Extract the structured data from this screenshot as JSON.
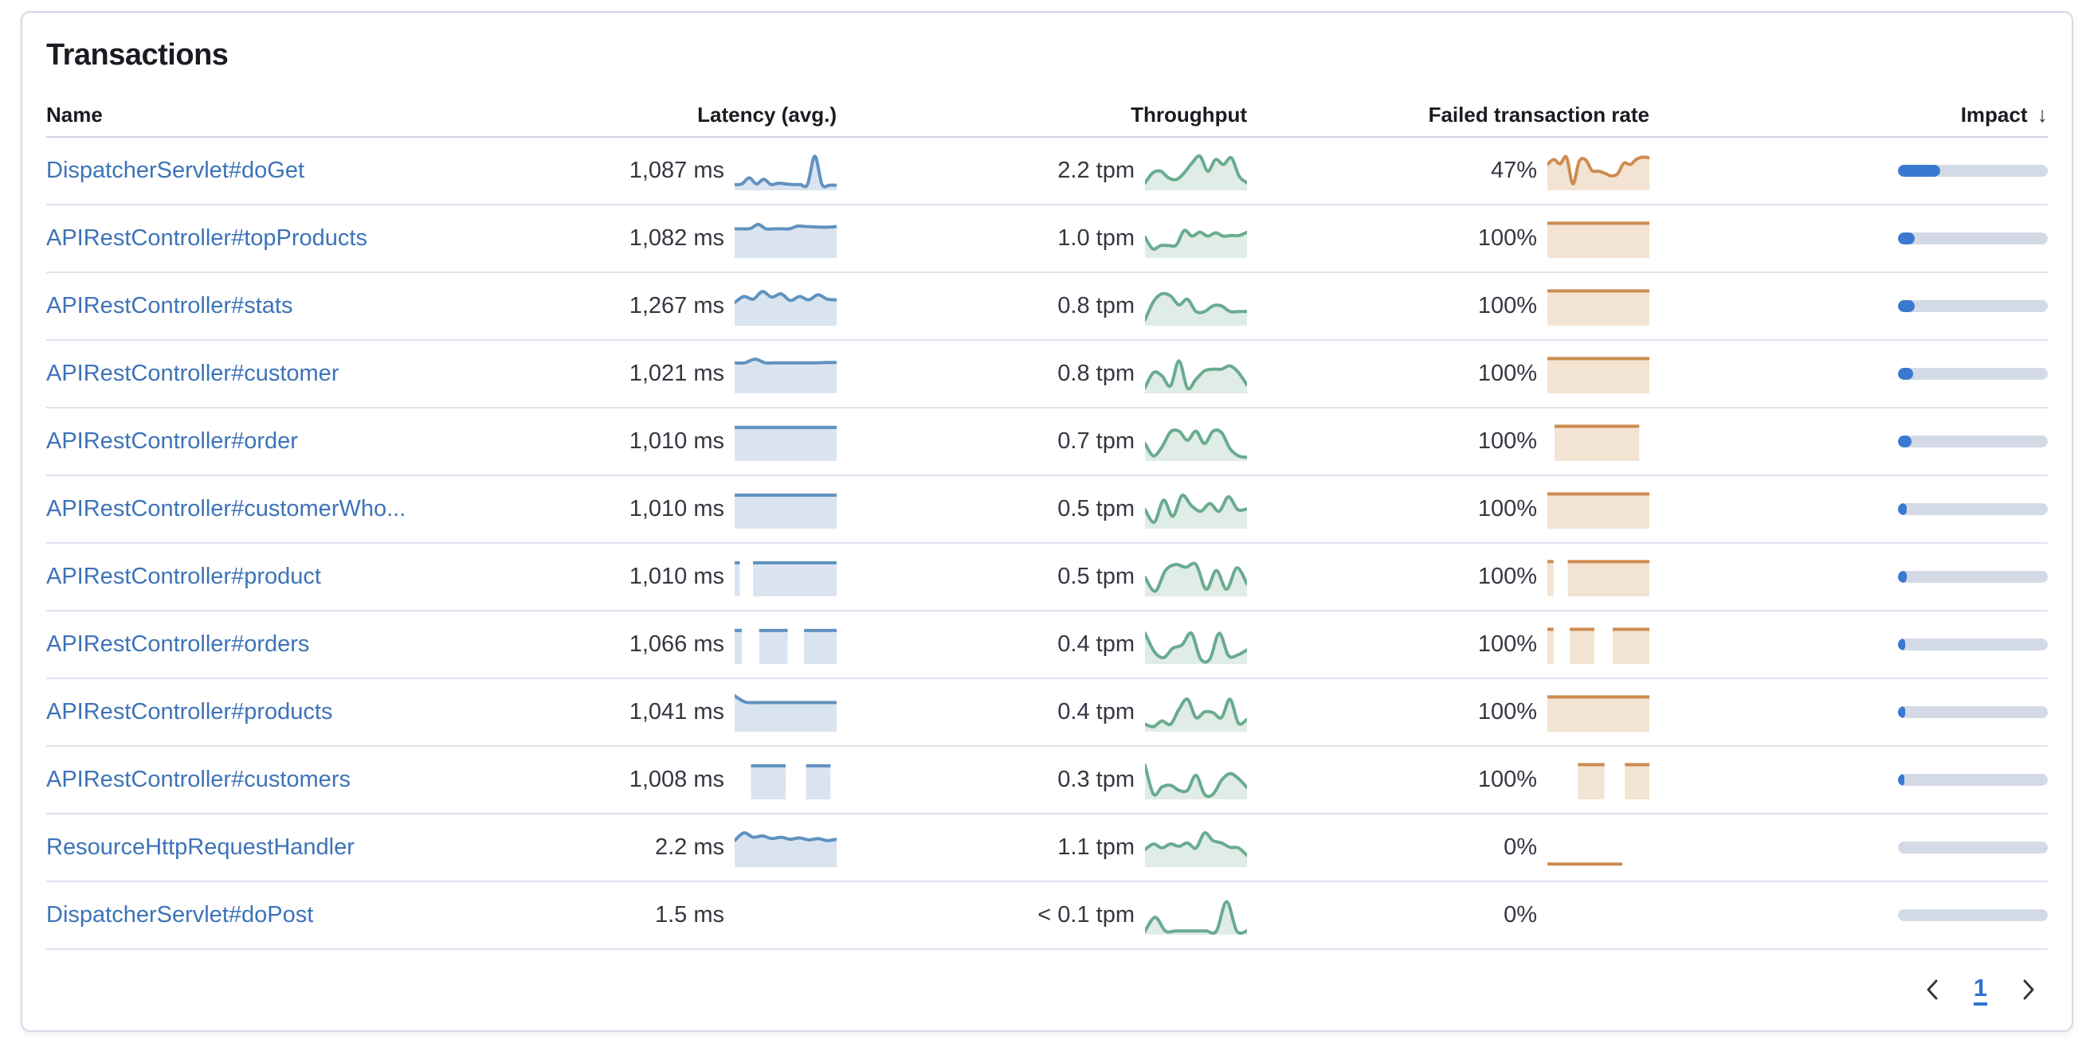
{
  "title": "Transactions",
  "table": {
    "headers": {
      "name": "Name",
      "latency": "Latency (avg.)",
      "throughput": "Throughput",
      "failed": "Failed transaction rate",
      "impact": "Impact",
      "sort_arrow": "↓"
    },
    "rows": [
      {
        "name": "DispatcherServlet#doGet",
        "latency": "1,087 ms",
        "throughput": "2.2 tpm",
        "failed": "47%",
        "impact_pct": 28,
        "latency_spark": {
          "type": "line",
          "points": [
            0.1,
            0.12,
            0.3,
            0.12,
            0.26,
            0.1,
            0.14,
            0.12,
            0.1,
            0.1,
            0.1,
            0.95,
            0.1,
            0.08,
            0.08
          ]
        },
        "throughput_spark": {
          "type": "line",
          "points": [
            0.15,
            0.45,
            0.5,
            0.3,
            0.25,
            0.45,
            0.75,
            0.95,
            0.5,
            0.85,
            0.7,
            0.9,
            0.35,
            0.15
          ]
        },
        "failed_spark": {
          "type": "line",
          "points": [
            0.7,
            0.85,
            0.72,
            0.92,
            0.12,
            0.8,
            0.84,
            0.52,
            0.5,
            0.44,
            0.36,
            0.42,
            0.74,
            0.7,
            0.86,
            0.92,
            0.9
          ]
        }
      },
      {
        "name": "APIRestController#topProducts",
        "latency": "1,082 ms",
        "throughput": "1.0 tpm",
        "failed": "100%",
        "impact_pct": 11,
        "latency_spark": {
          "type": "line",
          "points": [
            0.8,
            0.8,
            0.81,
            0.93,
            0.8,
            0.8,
            0.8,
            0.8,
            0.88,
            0.87,
            0.86,
            0.85,
            0.85,
            0.87
          ]
        },
        "throughput_spark": {
          "type": "line",
          "points": [
            0.55,
            0.2,
            0.3,
            0.3,
            0.32,
            0.75,
            0.58,
            0.7,
            0.58,
            0.68,
            0.58,
            0.6,
            0.6,
            0.7
          ]
        },
        "failed_spark": {
          "type": "blocks",
          "segments": [
            [
              0,
              1
            ]
          ],
          "top": 0.95
        }
      },
      {
        "name": "APIRestController#stats",
        "latency": "1,267 ms",
        "throughput": "0.8 tpm",
        "failed": "100%",
        "impact_pct": 11,
        "latency_spark": {
          "type": "line",
          "points": [
            0.62,
            0.8,
            0.72,
            0.95,
            0.78,
            0.88,
            0.68,
            0.8,
            0.7,
            0.85,
            0.72,
            0.7
          ]
        },
        "throughput_spark": {
          "type": "line",
          "points": [
            0.1,
            0.65,
            0.88,
            0.82,
            0.55,
            0.72,
            0.35,
            0.35,
            0.52,
            0.52,
            0.35,
            0.35,
            0.35
          ]
        },
        "failed_spark": {
          "type": "blocks",
          "segments": [
            [
              0,
              1
            ]
          ],
          "top": 0.95
        }
      },
      {
        "name": "APIRestController#customer",
        "latency": "1,021 ms",
        "throughput": "0.8 tpm",
        "failed": "100%",
        "impact_pct": 10,
        "latency_spark": {
          "type": "line",
          "points": [
            0.84,
            0.84,
            0.95,
            0.84,
            0.84,
            0.84,
            0.84,
            0.84,
            0.84,
            0.85,
            0.85
          ]
        },
        "throughput_spark": {
          "type": "line",
          "points": [
            0.1,
            0.55,
            0.45,
            0.15,
            0.9,
            0.08,
            0.35,
            0.6,
            0.65,
            0.65,
            0.75,
            0.55,
            0.18
          ]
        },
        "failed_spark": {
          "type": "blocks",
          "segments": [
            [
              0,
              1
            ]
          ],
          "top": 0.95
        }
      },
      {
        "name": "APIRestController#order",
        "latency": "1,010 ms",
        "throughput": "0.7 tpm",
        "failed": "100%",
        "impact_pct": 9,
        "latency_spark": {
          "type": "blocks",
          "segments": [
            [
              0,
              1
            ]
          ],
          "top": 0.92
        },
        "throughput_spark": {
          "type": "line",
          "points": [
            0.45,
            0.08,
            0.35,
            0.8,
            0.82,
            0.55,
            0.82,
            0.45,
            0.82,
            0.78,
            0.3,
            0.08,
            0.04
          ]
        },
        "failed_spark": {
          "type": "blocks",
          "segments": [
            [
              0.07,
              0.9
            ]
          ],
          "top": 0.95
        }
      },
      {
        "name": "APIRestController#customerWho...",
        "latency": "1,010 ms",
        "throughput": "0.5 tpm",
        "failed": "100%",
        "impact_pct": 6,
        "latency_spark": {
          "type": "blocks",
          "segments": [
            [
              0,
              1
            ]
          ],
          "top": 0.92
        },
        "throughput_spark": {
          "type": "line",
          "points": [
            0.5,
            0.12,
            0.78,
            0.3,
            0.92,
            0.62,
            0.45,
            0.68,
            0.45,
            0.88,
            0.5,
            0.52
          ]
        },
        "failed_spark": {
          "type": "blocks",
          "segments": [
            [
              0,
              1
            ]
          ],
          "top": 0.95
        }
      },
      {
        "name": "APIRestController#product",
        "latency": "1,010 ms",
        "throughput": "0.5 tpm",
        "failed": "100%",
        "impact_pct": 6,
        "latency_spark": {
          "type": "blocks",
          "segments": [
            [
              0,
              0.05
            ],
            [
              0.18,
              1
            ]
          ],
          "top": 0.92
        },
        "throughput_spark": {
          "type": "line",
          "points": [
            0.5,
            0.08,
            0.7,
            0.88,
            0.8,
            0.88,
            0.14,
            0.7,
            0.14,
            0.78,
            0.3
          ]
        },
        "failed_spark": {
          "type": "blocks",
          "segments": [
            [
              0,
              0.06
            ],
            [
              0.2,
              1
            ]
          ],
          "top": 0.95
        }
      },
      {
        "name": "APIRestController#orders",
        "latency": "1,066 ms",
        "throughput": "0.4 tpm",
        "failed": "100%",
        "impact_pct": 5,
        "latency_spark": {
          "type": "blocks",
          "segments": [
            [
              0,
              0.07
            ],
            [
              0.24,
              0.52
            ],
            [
              0.68,
              1
            ]
          ],
          "top": 0.92
        },
        "throughput_spark": {
          "type": "line",
          "points": [
            0.85,
            0.3,
            0.12,
            0.4,
            0.5,
            0.85,
            0.08,
            0.08,
            0.85,
            0.18,
            0.2,
            0.35
          ]
        },
        "failed_spark": {
          "type": "blocks",
          "segments": [
            [
              0,
              0.06
            ],
            [
              0.22,
              0.46
            ],
            [
              0.64,
              1
            ]
          ],
          "top": 0.95
        }
      },
      {
        "name": "APIRestController#products",
        "latency": "1,041 ms",
        "throughput": "0.4 tpm",
        "failed": "100%",
        "impact_pct": 5,
        "latency_spark": {
          "type": "line",
          "points": [
            1.0,
            0.82,
            0.8,
            0.8,
            0.8,
            0.8,
            0.8,
            0.8,
            0.8,
            0.8,
            0.8
          ]
        },
        "throughput_spark": {
          "type": "line",
          "points": [
            0.15,
            0.08,
            0.25,
            0.15,
            0.6,
            0.9,
            0.35,
            0.52,
            0.5,
            0.35,
            0.9,
            0.18,
            0.3
          ]
        },
        "failed_spark": {
          "type": "blocks",
          "segments": [
            [
              0,
              1
            ]
          ],
          "top": 0.95
        }
      },
      {
        "name": "APIRestController#customers",
        "latency": "1,008 ms",
        "throughput": "0.3 tpm",
        "failed": "100%",
        "impact_pct": 4,
        "latency_spark": {
          "type": "blocks",
          "segments": [
            [
              0.16,
              0.5
            ],
            [
              0.7,
              0.94
            ]
          ],
          "top": 0.92
        },
        "throughput_spark": {
          "type": "line",
          "points": [
            0.95,
            0.08,
            0.3,
            0.35,
            0.2,
            0.2,
            0.65,
            0.08,
            0.08,
            0.5,
            0.7,
            0.55,
            0.28
          ]
        },
        "failed_spark": {
          "type": "blocks",
          "segments": [
            [
              0.3,
              0.56
            ],
            [
              0.76,
              1
            ]
          ],
          "top": 0.95
        }
      },
      {
        "name": "ResourceHttpRequestHandler",
        "latency": "2.2 ms",
        "throughput": "1.1 tpm",
        "failed": "0%",
        "impact_pct": 0,
        "latency_spark": {
          "type": "line",
          "points": [
            0.72,
            0.95,
            0.82,
            0.86,
            0.78,
            0.82,
            0.76,
            0.8,
            0.74,
            0.78,
            0.72,
            0.76
          ]
        },
        "throughput_spark": {
          "type": "line",
          "points": [
            0.45,
            0.62,
            0.5,
            0.62,
            0.55,
            0.65,
            0.5,
            0.95,
            0.72,
            0.65,
            0.52,
            0.5,
            0.28
          ]
        },
        "failed_spark": {
          "type": "line",
          "xspan": [
            0,
            0.72
          ],
          "noarea": true,
          "points": [
            0.02,
            0.02,
            0.02,
            0.02,
            0.02,
            0.02
          ]
        }
      },
      {
        "name": "DispatcherServlet#doPost",
        "latency": "1.5 ms",
        "throughput": "< 0.1 tpm",
        "failed": "0%",
        "impact_pct": 0,
        "latency_spark": {
          "type": "none"
        },
        "throughput_spark": {
          "type": "line",
          "points": [
            0.04,
            0.45,
            0.04,
            0.04,
            0.04,
            0.04,
            0.04,
            0.04,
            0.92,
            0.04,
            0.04
          ]
        },
        "failed_spark": {
          "type": "none"
        }
      }
    ]
  },
  "pagination": {
    "current_page": "1"
  },
  "colors": {
    "latency_line": "#6092c0",
    "latency_fill": "#dae4f1",
    "throughput_line": "#69ab90",
    "throughput_fill": "#e0ece6",
    "failed_line": "#cd8c50",
    "failed_fill": "#f3e3d2",
    "impact_fill": "#3b79d0",
    "impact_track": "#d3dae6",
    "link_blue": "#3d73b8",
    "page_number_blue": "#2e73d0"
  }
}
